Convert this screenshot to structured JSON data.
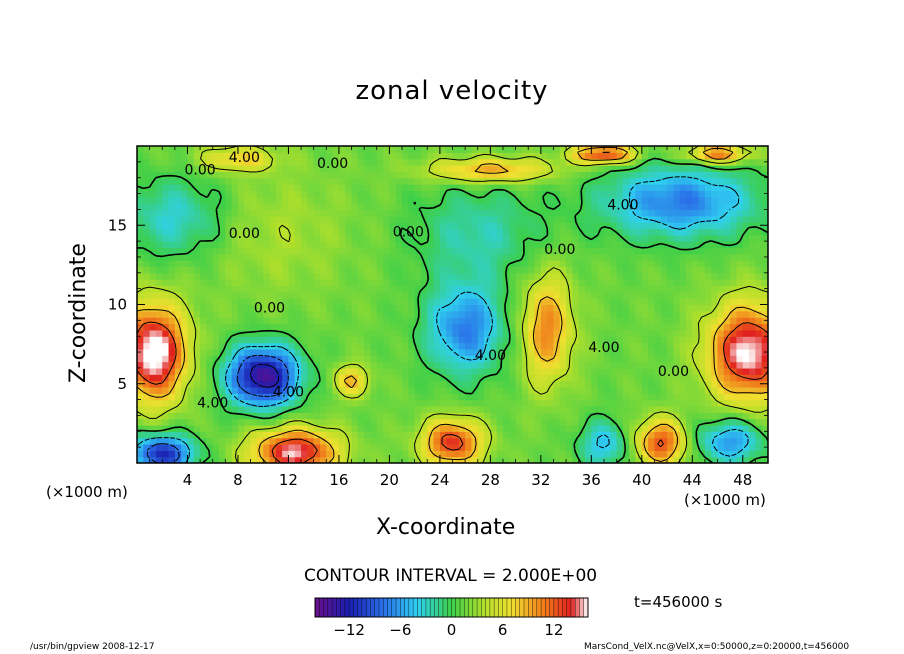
{
  "chart_data": {
    "type": "heatmap",
    "title": "zonal velocity",
    "xlabel": "X-coordinate",
    "ylabel": "Z-coordinate",
    "x_unit_label": "(×1000 m)",
    "x_ticks": [
      4,
      8,
      12,
      16,
      20,
      24,
      28,
      32,
      36,
      40,
      44,
      48
    ],
    "y_ticks": [
      5,
      10,
      15
    ],
    "xlim": [
      0,
      50
    ],
    "ylim": [
      0,
      20
    ],
    "contour_interval_text": "CONTOUR INTERVAL = 2.000E+00",
    "colorbar": {
      "min": -16,
      "max": 16,
      "ticks": [
        -12,
        -6,
        0,
        6,
        12
      ],
      "tick_labels": [
        "−12",
        "−6",
        "0",
        "6",
        "12"
      ]
    },
    "contour_labels": [
      {
        "text": "4.00",
        "x": 8.5,
        "z": 19.0
      },
      {
        "text": "0.00",
        "x": 5.0,
        "z": 18.2
      },
      {
        "text": "0.00",
        "x": 15.5,
        "z": 18.6
      },
      {
        "text": "0.00",
        "x": 8.5,
        "z": 14.2
      },
      {
        "text": "0.00",
        "x": 21.5,
        "z": 14.3
      },
      {
        "text": "0.00",
        "x": 33.5,
        "z": 13.2
      },
      {
        "text": "4.00",
        "x": 38.5,
        "z": 16.0
      },
      {
        "text": "0.00",
        "x": 10.5,
        "z": 9.5
      },
      {
        "text": "4.00",
        "x": 28.0,
        "z": 6.5
      },
      {
        "text": "4.00",
        "x": 37.0,
        "z": 7.0
      },
      {
        "text": "0.00",
        "x": 42.5,
        "z": 5.5
      },
      {
        "text": "4.00",
        "x": 6.0,
        "z": 3.5
      },
      {
        "text": "4.00",
        "x": 12.0,
        "z": 4.2
      }
    ],
    "features": [
      {
        "x": 1.3,
        "z": 7.0,
        "sx": 2.6,
        "sz": 3.0,
        "value": 16
      },
      {
        "x": 10.0,
        "z": 5.5,
        "sx": 2.8,
        "sz": 1.9,
        "value": -16
      },
      {
        "x": 26.0,
        "z": 8.5,
        "sx": 3.0,
        "sz": 2.8,
        "value": -9
      },
      {
        "x": 32.5,
        "z": 8.5,
        "sx": 2.0,
        "sz": 3.4,
        "value": 9
      },
      {
        "x": 48.5,
        "z": 7.0,
        "sx": 3.2,
        "sz": 3.0,
        "value": 15
      },
      {
        "x": 12.5,
        "z": 0.7,
        "sx": 3.4,
        "sz": 1.5,
        "value": 14
      },
      {
        "x": 25.0,
        "z": 1.3,
        "sx": 2.4,
        "sz": 1.5,
        "value": 12
      },
      {
        "x": 41.5,
        "z": 1.3,
        "sx": 2.0,
        "sz": 1.5,
        "value": 11
      },
      {
        "x": 2.0,
        "z": 0.6,
        "sx": 2.5,
        "sz": 1.2,
        "value": -13
      },
      {
        "x": 47.0,
        "z": 1.4,
        "sx": 2.6,
        "sz": 1.4,
        "value": -8
      },
      {
        "x": 37.0,
        "z": 1.2,
        "sx": 2.0,
        "sz": 1.5,
        "value": -6
      },
      {
        "x": 17.0,
        "z": 5.2,
        "sx": 1.4,
        "sz": 1.0,
        "value": 7
      },
      {
        "x": 3.0,
        "z": 15.5,
        "sx": 4.0,
        "sz": 2.5,
        "value": -5
      },
      {
        "x": 27.0,
        "z": 14.5,
        "sx": 5.0,
        "sz": 3.0,
        "value": -4
      },
      {
        "x": 43.0,
        "z": 16.5,
        "sx": 6.0,
        "sz": 2.2,
        "value": -9
      },
      {
        "x": 28.0,
        "z": 18.5,
        "sx": 5.0,
        "sz": 0.8,
        "value": 8
      },
      {
        "x": 37.0,
        "z": 19.5,
        "sx": 2.5,
        "sz": 0.6,
        "value": 12
      },
      {
        "x": 46.0,
        "z": 19.5,
        "sx": 2.5,
        "sz": 0.6,
        "value": 10
      },
      {
        "x": 11.0,
        "z": 14.5,
        "sx": 6.0,
        "sz": 4.0,
        "value": 2
      },
      {
        "x": 8.0,
        "z": 19.2,
        "sx": 3.0,
        "sz": 0.8,
        "value": 6
      }
    ]
  },
  "x_unit_label_right": "(×1000 m)",
  "time_label": "t=456000 s",
  "footer": {
    "left": "/usr/bin/gpview  2008-12-17",
    "right": "MarsCond_VelX.nc@VelX,x=0:50000,z=0:20000,t=456000"
  }
}
